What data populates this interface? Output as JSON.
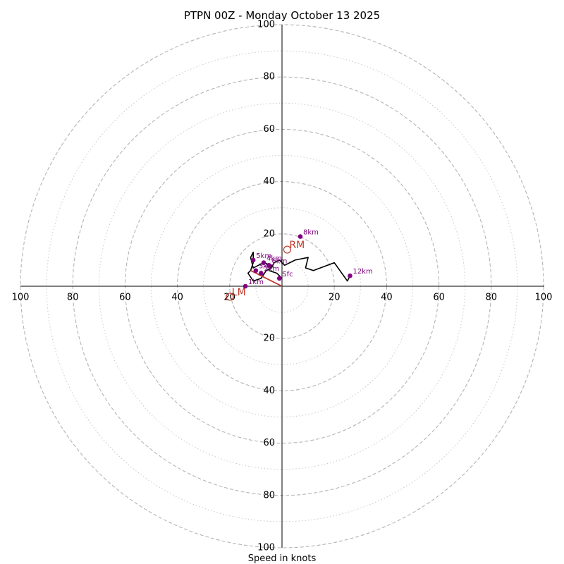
{
  "chart_data": {
    "type": "hodograph",
    "title": "PTPN 00Z - Monday October 13 2025",
    "xlabel": "Speed in knots",
    "units": "knots",
    "max_speed": 100,
    "major_rings": [
      20,
      40,
      60,
      80,
      100
    ],
    "minor_rings": [
      10,
      30,
      50,
      70,
      90
    ],
    "tick_labels": [
      "20",
      "40",
      "60",
      "80",
      "100"
    ],
    "hodograph_trace": {
      "color": "#000000",
      "points": [
        [
          0,
          3
        ],
        [
          -2,
          5
        ],
        [
          -5,
          6
        ],
        [
          -4,
          8
        ],
        [
          -7,
          9
        ],
        [
          -9,
          8
        ],
        [
          -11,
          7
        ],
        [
          -12,
          11
        ],
        [
          -11,
          13
        ],
        [
          -11,
          9
        ],
        [
          -12,
          6
        ],
        [
          -13,
          5
        ],
        [
          -11,
          2
        ],
        [
          -8,
          3
        ],
        [
          -6,
          6
        ],
        [
          -4,
          7
        ],
        [
          -3,
          9
        ],
        [
          -1,
          10
        ],
        [
          1,
          8
        ],
        [
          5,
          10
        ],
        [
          10,
          11
        ],
        [
          9,
          7
        ],
        [
          12,
          6
        ],
        [
          20,
          9
        ],
        [
          25,
          2
        ],
        [
          26,
          4
        ]
      ]
    },
    "height_markers": [
      {
        "label": "Sfc",
        "u": -1,
        "v": 3
      },
      {
        "label": "1km",
        "u": -14,
        "v": 0
      },
      {
        "label": "2km",
        "u": -8,
        "v": 5
      },
      {
        "label": "3km",
        "u": -10,
        "v": 6
      },
      {
        "label": "4km",
        "u": -7,
        "v": 9
      },
      {
        "label": "5km",
        "u": -11,
        "v": 10
      },
      {
        "label": "6km",
        "u": -5,
        "v": 8
      },
      {
        "label": "8km",
        "u": 7,
        "v": 19
      },
      {
        "label": "12km",
        "u": 26,
        "v": 4
      }
    ],
    "storm_motion": {
      "color": "#c0392b",
      "rm": {
        "label": "RM",
        "u": 2,
        "v": 14
      },
      "lm": {
        "label": "LM",
        "u": -20,
        "v": -4
      },
      "red_line": [
        [
          0,
          0
        ],
        [
          -12,
          6
        ]
      ]
    }
  }
}
